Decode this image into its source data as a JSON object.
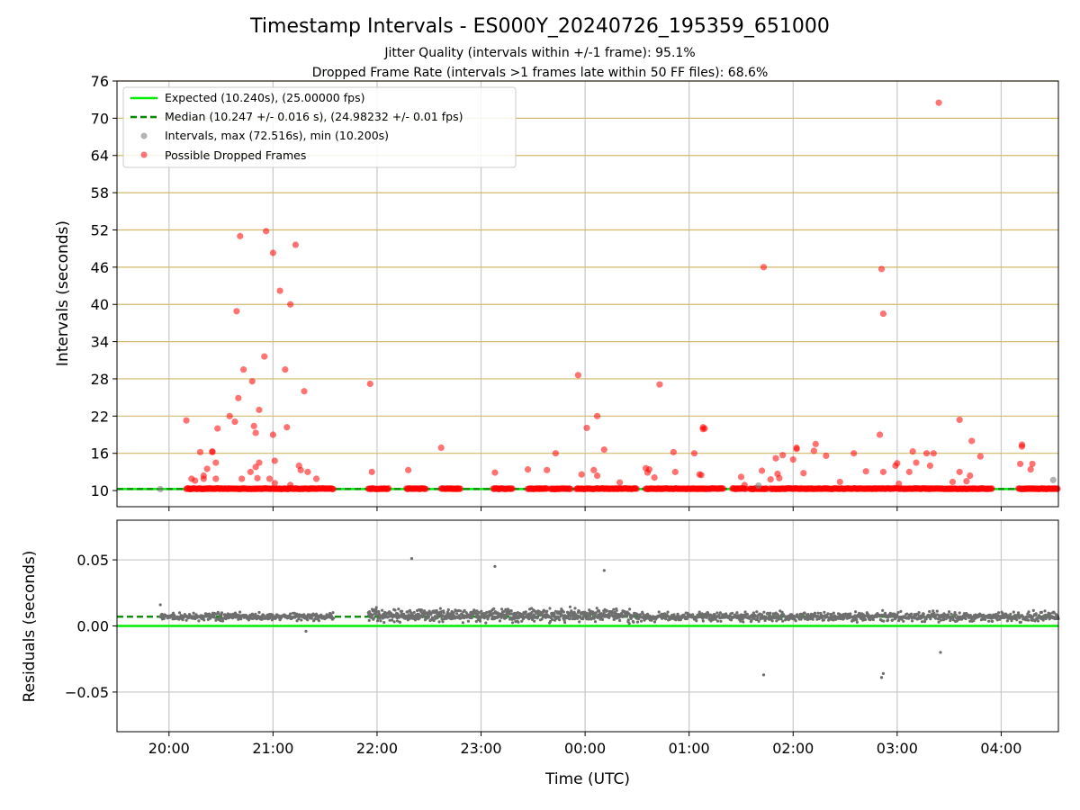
{
  "title": "Timestamp Intervals - ES000Y_20240726_195359_651000",
  "subtitle_1": "Jitter Quality (intervals within +/-1 frame): 95.1%",
  "subtitle_2": "Dropped Frame Rate (intervals >1 frames late within 50 FF files): 68.6%",
  "colors": {
    "expected": "#00ee00",
    "median": "#008800",
    "interval_gray": "#808080",
    "dropped_red": "#ff0000",
    "hgrid_top": "#d2b96a",
    "grid": "#c8c8c8"
  },
  "chart_data": [
    {
      "type": "scatter",
      "ylabel": "Intervals (seconds)",
      "ylim": [
        7.4,
        76
      ],
      "yticks": [
        "10",
        "16",
        "22",
        "28",
        "34",
        "40",
        "46",
        "52",
        "58",
        "64",
        "70",
        "76"
      ],
      "xlim": [
        "19:30",
        "04:33"
      ],
      "xticks": [
        "20:00",
        "21:00",
        "22:00",
        "23:00",
        "00:00",
        "01:00",
        "02:00",
        "03:00",
        "04:00"
      ],
      "grid": true,
      "legend_position": "top-left",
      "legend": [
        "Expected (10.240s), (25.00000 fps)",
        "Median (10.247 +/- 0.016 s), (24.98232 +/- 0.01 fps)",
        "Intervals, max (72.516s), min (10.200s)",
        "Possible Dropped Frames"
      ],
      "expected_interval": 10.24,
      "median_interval": 10.247,
      "series": [
        {
          "name": "Possible Dropped Frames",
          "points": [
            [
              "20:10",
              21.3
            ],
            [
              "20:13",
              11.9
            ],
            [
              "20:15",
              11.6
            ],
            [
              "20:18",
              16.2
            ],
            [
              "20:20",
              11.9
            ],
            [
              "20:20",
              12.4
            ],
            [
              "20:22",
              13.5
            ],
            [
              "20:25",
              16.2
            ],
            [
              "20:25",
              16.3
            ],
            [
              "20:27",
              14.5
            ],
            [
              "20:27",
              11.9
            ],
            [
              "20:28",
              20.0
            ],
            [
              "20:35",
              22.0
            ],
            [
              "20:38",
              21.1
            ],
            [
              "20:39",
              38.9
            ],
            [
              "20:40",
              24.9
            ],
            [
              "20:41",
              51.0
            ],
            [
              "20:42",
              11.9
            ],
            [
              "20:43",
              29.5
            ],
            [
              "20:47",
              13.0
            ],
            [
              "20:48",
              27.6
            ],
            [
              "20:49",
              20.4
            ],
            [
              "20:50",
              19.3
            ],
            [
              "20:50",
              13.8
            ],
            [
              "20:51",
              12.0
            ],
            [
              "20:52",
              23.0
            ],
            [
              "20:52",
              14.5
            ],
            [
              "20:55",
              31.6
            ],
            [
              "20:56",
              51.8
            ],
            [
              "20:58",
              11.9
            ],
            [
              "21:00",
              48.3
            ],
            [
              "21:00",
              19.0
            ],
            [
              "21:01",
              14.8
            ],
            [
              "21:01",
              11.2
            ],
            [
              "21:04",
              42.2
            ],
            [
              "21:07",
              29.5
            ],
            [
              "21:08",
              20.2
            ],
            [
              "21:10",
              40.0
            ],
            [
              "21:10",
              10.9
            ],
            [
              "21:13",
              49.6
            ],
            [
              "21:15",
              14.0
            ],
            [
              "21:16",
              13.3
            ],
            [
              "21:18",
              26.0
            ],
            [
              "21:20",
              13.0
            ],
            [
              "21:25",
              11.9
            ],
            [
              "21:56",
              27.2
            ],
            [
              "21:57",
              13.0
            ],
            [
              "22:18",
              13.3
            ],
            [
              "22:37",
              16.9
            ],
            [
              "23:08",
              12.9
            ],
            [
              "23:27",
              13.4
            ],
            [
              "23:38",
              13.3
            ],
            [
              "23:43",
              16.0
            ],
            [
              "23:56",
              28.6
            ],
            [
              "23:58",
              12.6
            ],
            [
              "00:01",
              20.1
            ],
            [
              "00:05",
              13.3
            ],
            [
              "00:07",
              22.0
            ],
            [
              "00:07",
              12.4
            ],
            [
              "00:11",
              16.6
            ],
            [
              "00:20",
              11.3
            ],
            [
              "00:35",
              13.6
            ],
            [
              "00:36",
              12.9
            ],
            [
              "00:37",
              13.4
            ],
            [
              "00:40",
              12.1
            ],
            [
              "00:43",
              27.1
            ],
            [
              "00:51",
              16.2
            ],
            [
              "00:52",
              13.0
            ],
            [
              "01:03",
              16.0
            ],
            [
              "01:06",
              12.6
            ],
            [
              "01:07",
              12.5
            ],
            [
              "01:08",
              20.2
            ],
            [
              "01:08",
              19.9
            ],
            [
              "01:09",
              20.0
            ],
            [
              "01:30",
              12.2
            ],
            [
              "01:32",
              10.9
            ],
            [
              "01:42",
              13.2
            ],
            [
              "01:43",
              46.0
            ],
            [
              "01:47",
              11.8
            ],
            [
              "01:50",
              15.2
            ],
            [
              "01:51",
              12.7
            ],
            [
              "01:52",
              12.0
            ],
            [
              "01:54",
              15.7
            ],
            [
              "02:00",
              15.0
            ],
            [
              "02:02",
              16.9
            ],
            [
              "02:02",
              16.7
            ],
            [
              "02:06",
              12.8
            ],
            [
              "02:12",
              16.4
            ],
            [
              "02:13",
              17.5
            ],
            [
              "02:19",
              15.6
            ],
            [
              "02:27",
              11.4
            ],
            [
              "02:35",
              16.0
            ],
            [
              "02:42",
              13.1
            ],
            [
              "02:50",
              19.0
            ],
            [
              "02:51",
              45.7
            ],
            [
              "02:52",
              38.5
            ],
            [
              "02:52",
              13.0
            ],
            [
              "02:59",
              14.0
            ],
            [
              "03:00",
              14.4
            ],
            [
              "03:01",
              11.1
            ],
            [
              "03:07",
              13.0
            ],
            [
              "03:09",
              16.3
            ],
            [
              "03:11",
              14.5
            ],
            [
              "03:17",
              16.0
            ],
            [
              "03:19",
              14.0
            ],
            [
              "03:21",
              16.0
            ],
            [
              "03:24",
              72.5
            ],
            [
              "03:32",
              11.4
            ],
            [
              "03:36",
              21.4
            ],
            [
              "03:36",
              13.0
            ],
            [
              "03:40",
              11.5
            ],
            [
              "03:42",
              12.4
            ],
            [
              "03:43",
              18.0
            ],
            [
              "03:48",
              15.5
            ],
            [
              "04:11",
              14.3
            ],
            [
              "04:12",
              17.1
            ],
            [
              "04:12",
              17.4
            ],
            [
              "04:17",
              13.4
            ],
            [
              "04:18",
              14.3
            ]
          ]
        },
        {
          "name": "Intervals, max (72.516s), min (10.200s)",
          "points": [
            [
              "19:55",
              10.24
            ],
            [
              "01:40",
              10.8
            ],
            [
              "04:30",
              11.7
            ]
          ]
        }
      ],
      "dense_ranges": [
        [
          "20:10",
          "21:35"
        ],
        [
          "21:55",
          "22:07"
        ],
        [
          "22:17",
          "22:28"
        ],
        [
          "22:37",
          "22:48"
        ],
        [
          "23:07",
          "23:18"
        ],
        [
          "23:27",
          "23:38"
        ],
        [
          "23:40",
          "23:52"
        ],
        [
          "23:55",
          "00:30"
        ],
        [
          "00:35",
          "01:20"
        ],
        [
          "01:25",
          "01:33"
        ],
        [
          "01:35",
          "01:45"
        ],
        [
          "01:47",
          "02:35"
        ],
        [
          "02:35",
          "02:58"
        ],
        [
          "02:58",
          "03:55"
        ],
        [
          "04:10",
          "04:33"
        ]
      ]
    },
    {
      "type": "scatter",
      "xlabel": "Time (UTC)",
      "ylabel": "Residuals (seconds)",
      "ylim": [
        -0.08,
        0.08
      ],
      "yticks": [
        "0.05",
        "0.00",
        "−0.05"
      ],
      "xlim": [
        "19:30",
        "04:33"
      ],
      "xticks": [
        "20:00",
        "21:00",
        "22:00",
        "23:00",
        "00:00",
        "01:00",
        "02:00",
        "03:00",
        "04:00"
      ],
      "grid": true,
      "expected_residual": 0.0,
      "median_residual": 0.007,
      "outliers": [
        [
          "19:55",
          0.016
        ],
        [
          "21:19",
          -0.004
        ],
        [
          "22:20",
          0.051
        ],
        [
          "23:08",
          0.045
        ],
        [
          "00:11",
          0.042
        ],
        [
          "01:43",
          -0.037
        ],
        [
          "02:51",
          -0.039
        ],
        [
          "02:52",
          -0.036
        ],
        [
          "03:25",
          -0.02
        ]
      ],
      "cloud_ranges": [
        {
          "from": "19:55",
          "to": "21:35",
          "center": 0.007,
          "spread": 0.004
        },
        {
          "from": "21:55",
          "to": "00:30",
          "center": 0.008,
          "spread": 0.007
        },
        {
          "from": "00:30",
          "to": "04:33",
          "center": 0.007,
          "spread": 0.005
        }
      ]
    }
  ]
}
